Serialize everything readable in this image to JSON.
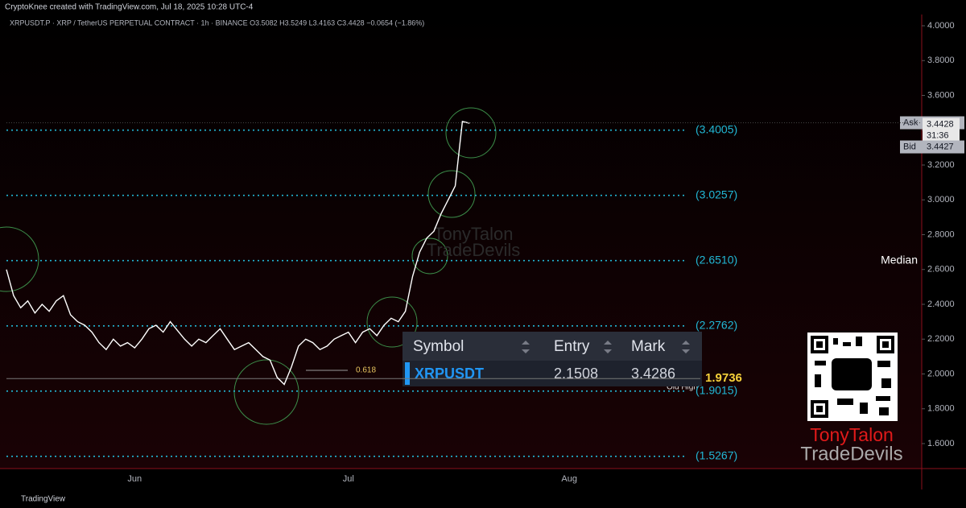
{
  "chart_data": {
    "type": "line",
    "header": "CryptoKnee created with TradingView.com, Jul 18, 2025 10:28 UTC-4",
    "symbol_line": "XRPUSDT.P · XRP / TetherUS PERPETUAL CONTRACT · 1h · BINANCE  O3.5082 H3.5249 L3.4163 C3.4428 −0.0654 (−1.86%)",
    "categories": [
      null,
      null,
      null,
      null,
      null,
      null,
      null,
      null,
      null,
      null,
      null,
      null,
      null,
      null,
      null,
      null,
      null,
      null,
      "Jun",
      null,
      null,
      null,
      null,
      null,
      null,
      null,
      null,
      null,
      null,
      null,
      null,
      null,
      null,
      null,
      null,
      null,
      null,
      null,
      null,
      null,
      null,
      null,
      null,
      null,
      null,
      null,
      null,
      null,
      "Jul",
      null,
      null,
      null,
      null,
      null,
      null,
      null,
      null,
      null,
      null,
      null,
      null,
      null,
      null,
      null,
      null,
      null,
      null,
      null,
      null,
      null,
      null,
      null,
      null,
      null,
      null,
      null,
      null,
      null,
      null,
      "Aug"
    ],
    "series": [
      {
        "name": "XRPUSDT",
        "color": "#ffffff",
        "values": [
          2.6,
          2.45,
          2.38,
          2.42,
          2.35,
          2.4,
          2.36,
          2.42,
          2.45,
          2.34,
          2.3,
          2.28,
          2.24,
          2.18,
          2.14,
          2.2,
          2.16,
          2.18,
          2.15,
          2.2,
          2.26,
          2.28,
          2.24,
          2.3,
          2.25,
          2.2,
          2.16,
          2.2,
          2.18,
          2.22,
          2.26,
          2.2,
          2.14,
          2.16,
          2.18,
          2.14,
          2.1,
          2.08,
          1.98,
          1.94,
          2.04,
          2.16,
          2.2,
          2.18,
          2.14,
          2.16,
          2.2,
          2.22,
          2.24,
          2.18,
          2.24,
          2.26,
          2.22,
          2.28,
          2.32,
          2.3,
          2.36,
          2.56,
          2.7,
          2.78,
          2.82,
          2.92,
          3.0,
          3.08,
          3.45,
          3.44,
          null,
          null,
          null,
          null,
          null,
          null,
          null,
          null,
          null,
          null,
          null,
          null,
          null,
          null
        ]
      }
    ],
    "ylim": [
      1.5,
      4.05
    ],
    "yticks": [
      {
        "value": 1.6,
        "label": "1.6000"
      },
      {
        "value": 1.8,
        "label": "1.8000"
      },
      {
        "value": 2,
        "label": "2.0000"
      },
      {
        "value": 2.2,
        "label": "2.2000"
      },
      {
        "value": 2.4,
        "label": "2.4000"
      },
      {
        "value": 2.6,
        "label": "2.6000"
      },
      {
        "value": 2.8,
        "label": "2.8000"
      },
      {
        "value": 3,
        "label": "3.0000"
      },
      {
        "value": 3.2,
        "label": "3.2000"
      },
      {
        "value": 3.4,
        "label": "3.4000"
      },
      {
        "value": 3.6,
        "label": "3.6000"
      },
      {
        "value": 3.8,
        "label": "3.8000"
      },
      {
        "value": 4,
        "label": "4.0000"
      }
    ],
    "levels": [
      {
        "value": 3.4005,
        "label": "(3.4005)"
      },
      {
        "value": 3.0257,
        "label": "(3.0257)"
      },
      {
        "value": 2.651,
        "label": "(2.6510)"
      },
      {
        "value": 2.2762,
        "label": "(2.2762)"
      },
      {
        "value": 1.9015,
        "label": "(1.9015)"
      },
      {
        "value": 1.5267,
        "label": "(1.5267)"
      }
    ],
    "median_label": "Median",
    "old_high": {
      "label": "Old High",
      "value": 1.9736
    },
    "fib_label": "0.618",
    "ask": {
      "label": "Ask",
      "value": 3.4428
    },
    "bid": {
      "label": "Bid",
      "value": 3.4427
    },
    "last_price": 3.4428,
    "countdown": "31:36",
    "grid": false
  },
  "table": {
    "headers": [
      "Symbol",
      "Entry",
      "Mark"
    ],
    "rows": [
      [
        "XRPUSDT",
        2.1508,
        3.4286
      ]
    ]
  },
  "branding": {
    "name": "TonyTalon",
    "sub": "TradeDevils",
    "footer": "TradingView"
  }
}
